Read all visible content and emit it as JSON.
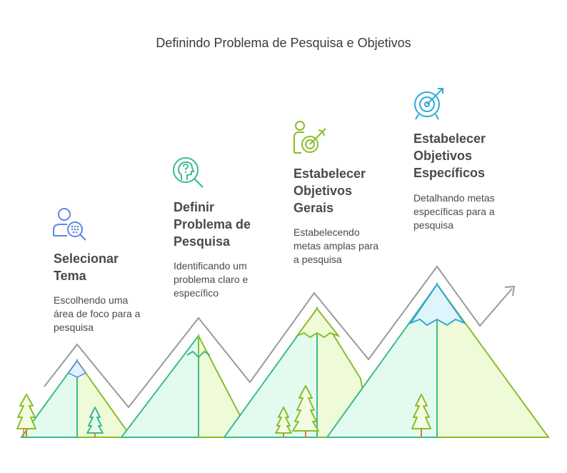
{
  "title": "Definindo Problema de Pesquisa e Objetivos",
  "steps": [
    {
      "title_lines": [
        "Selecionar",
        "Tema"
      ],
      "desc_lines": [
        "Escolhendo uma",
        "área de foco para a",
        "pesquisa"
      ],
      "icon": "person-search-icon",
      "color": "#5b86e5"
    },
    {
      "title_lines": [
        "Definir",
        "Problema de",
        "Pesquisa"
      ],
      "desc_lines": [
        "Identificando um",
        "problema claro e",
        "específico"
      ],
      "icon": "head-question-search-icon",
      "color": "#3dbb8a"
    },
    {
      "title_lines": [
        "Estabelecer",
        "Objetivos",
        "Gerais"
      ],
      "desc_lines": [
        "Estabelecendo",
        "metas amplas para",
        "a pesquisa"
      ],
      "icon": "person-target-icon",
      "color": "#8bbd2c"
    },
    {
      "title_lines": [
        "Estabelecer",
        "Objetivos",
        "Específicos"
      ],
      "desc_lines": [
        "Detalhando metas",
        "específicas para a",
        "pesquisa"
      ],
      "icon": "target-arrow-icon",
      "color": "#2ea8d8"
    }
  ]
}
